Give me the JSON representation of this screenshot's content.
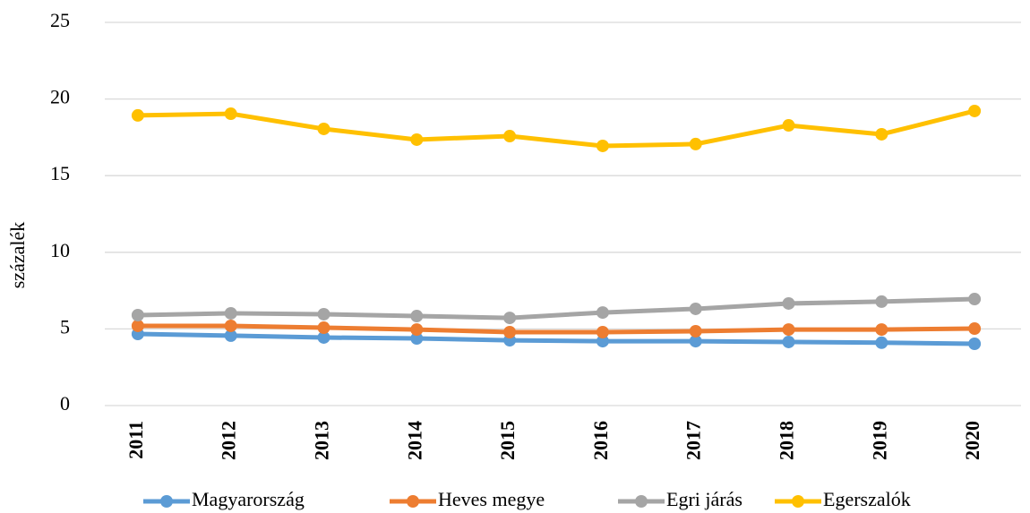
{
  "chart_data": {
    "type": "line",
    "y_label": "százalék",
    "categories": [
      "2011",
      "2012",
      "2013",
      "2014",
      "2015",
      "2016",
      "2017",
      "2018",
      "2019",
      "2020"
    ],
    "series": [
      {
        "name": "Magyarország",
        "color": "#5b9bd5",
        "values": [
          4.67,
          4.56,
          4.44,
          4.38,
          4.26,
          4.2,
          4.2,
          4.15,
          4.1,
          4.03
        ]
      },
      {
        "name": "Heves megye",
        "color": "#ed7d31",
        "values": [
          5.2,
          5.2,
          5.08,
          4.96,
          4.79,
          4.79,
          4.85,
          4.96,
          4.96,
          5.02
        ]
      },
      {
        "name": "Egri járás",
        "color": "#a5a5a5",
        "values": [
          5.9,
          6.02,
          5.96,
          5.84,
          5.72,
          6.07,
          6.31,
          6.66,
          6.78,
          6.95
        ]
      },
      {
        "name": "Egerszalók",
        "color": "#ffc000",
        "values": [
          18.93,
          19.04,
          18.05,
          17.35,
          17.58,
          16.94,
          17.06,
          18.28,
          17.7,
          19.22
        ]
      }
    ],
    "ylim": [
      0,
      25
    ],
    "yticks": [
      0,
      5,
      10,
      15,
      20,
      25
    ],
    "grid": true,
    "legend": "bottom"
  }
}
